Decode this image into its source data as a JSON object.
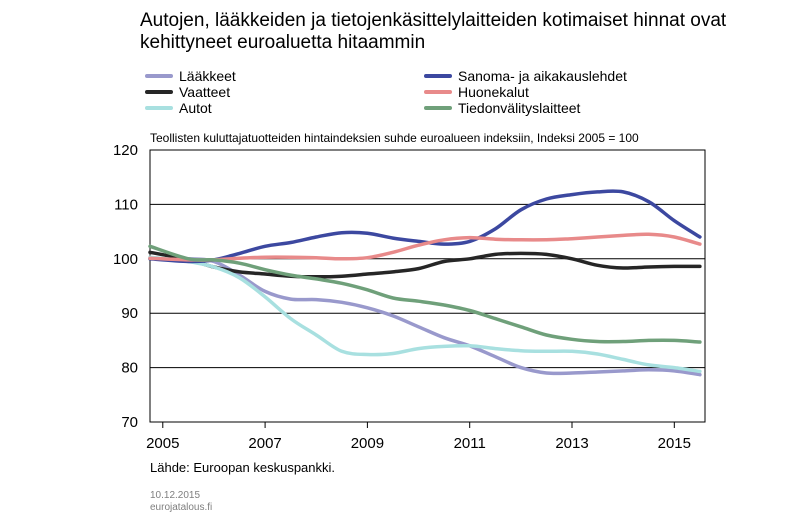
{
  "title": "Autojen, lääkkeiden ja tietojenkäsittelylaitteiden kotimaiset hinnat ovat kehittyneet euroaluetta hitaammin",
  "subtitle": "Teollisten kuluttajatuotteiden hintaindeksien suhde euroalueen indeksiin, Indeksi 2005 = 100",
  "source": "Lähde: Euroopan keskuspankki.",
  "date": "10.12.2015",
  "site": "eurojatalous.fi",
  "chart_data": {
    "type": "line",
    "title": "Autojen, lääkkeiden ja tietojenkäsittelylaitteiden kotimaiset hinnat ovat kehittyneet euroaluetta hitaammin",
    "xlabel": "",
    "ylabel": "",
    "xlim": [
      2004.75,
      2015.6
    ],
    "ylim": [
      70,
      120
    ],
    "yticks": [
      70,
      80,
      90,
      100,
      110,
      120
    ],
    "xticks": [
      2005,
      2007,
      2009,
      2011,
      2013,
      2015
    ],
    "grid": "horizontal",
    "legend_position": "top",
    "x": [
      2004.75,
      2005.5,
      2006.0,
      2006.5,
      2007.0,
      2007.5,
      2008.0,
      2008.5,
      2009.0,
      2009.5,
      2010.0,
      2010.5,
      2011.0,
      2011.5,
      2012.0,
      2012.5,
      2013.0,
      2013.5,
      2014.0,
      2014.5,
      2015.0,
      2015.5
    ],
    "series": [
      {
        "name": "Lääkkeet",
        "color": "#9999cc",
        "values": [
          100,
          100,
          99.5,
          97,
          94,
          92.6,
          92.5,
          92,
          91,
          89.5,
          87.5,
          85.5,
          84,
          82,
          80,
          79,
          79,
          79.2,
          79.4,
          79.6,
          79.4,
          78.7
        ]
      },
      {
        "name": "Vaatteet",
        "color": "#262626",
        "values": [
          101.2,
          99.8,
          98.5,
          97.6,
          97.2,
          96.8,
          96.7,
          96.8,
          97.2,
          97.6,
          98.2,
          99.5,
          100,
          100.8,
          101,
          100.8,
          100,
          98.8,
          98.3,
          98.5,
          98.6,
          98.6
        ]
      },
      {
        "name": "Autot",
        "color": "#a8e0e0",
        "values": [
          100.3,
          99.5,
          98.5,
          96.5,
          93,
          89,
          86,
          83,
          82.4,
          82.6,
          83.5,
          83.9,
          84,
          83.5,
          83.1,
          83,
          83,
          82.5,
          81.5,
          80.5,
          80,
          79.3
        ]
      },
      {
        "name": "Sanoma- ja aikakauslehdet",
        "color": "#3c48a0",
        "values": [
          100,
          99.5,
          99.8,
          101,
          102.3,
          103,
          104,
          104.8,
          104.7,
          103.8,
          103.2,
          102.7,
          103.2,
          105.5,
          109,
          111,
          111.8,
          112.3,
          112.3,
          110.5,
          107,
          104
        ]
      },
      {
        "name": "Huonekalut",
        "color": "#e88a8a",
        "values": [
          100.1,
          99.8,
          99.8,
          100.1,
          100.3,
          100.3,
          100.2,
          100,
          100.2,
          101.2,
          102.5,
          103.5,
          103.9,
          103.6,
          103.5,
          103.5,
          103.7,
          104,
          104.3,
          104.5,
          104,
          102.7
        ]
      },
      {
        "name": "Tiedonvälityslaitteet",
        "color": "#6fa07a",
        "values": [
          102.3,
          100,
          99.8,
          99.2,
          98,
          97,
          96.3,
          95.5,
          94.3,
          92.8,
          92.2,
          91.5,
          90.5,
          89,
          87.5,
          86,
          85.2,
          84.8,
          84.8,
          85,
          85,
          84.7
        ]
      }
    ]
  }
}
